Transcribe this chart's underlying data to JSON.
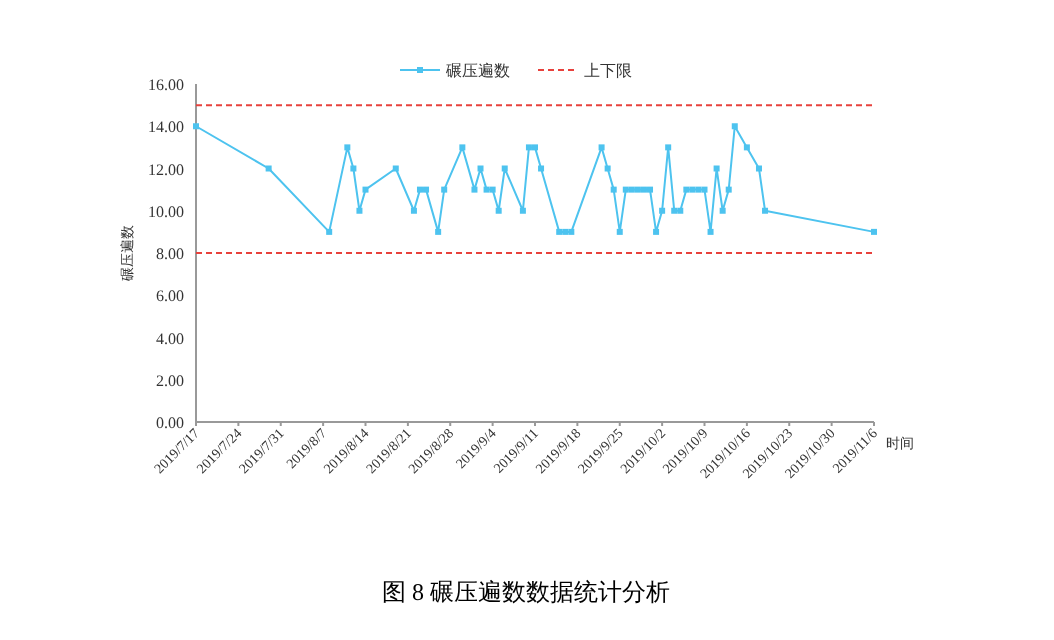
{
  "chart_data": {
    "type": "line",
    "ylabel": "碾压遍数",
    "xlabel": "时间",
    "x": [
      "2019-07-17",
      "2019-07-29",
      "2019-08-08",
      "2019-08-11",
      "2019-08-12",
      "2019-08-13",
      "2019-08-14",
      "2019-08-19",
      "2019-08-22",
      "2019-08-23",
      "2019-08-24",
      "2019-08-26",
      "2019-08-27",
      "2019-08-30",
      "2019-09-01",
      "2019-09-02",
      "2019-09-03",
      "2019-09-04",
      "2019-09-05",
      "2019-09-06",
      "2019-09-09",
      "2019-09-10",
      "2019-09-11",
      "2019-09-12",
      "2019-09-15",
      "2019-09-16",
      "2019-09-17",
      "2019-09-22",
      "2019-09-23",
      "2019-09-24",
      "2019-09-25",
      "2019-09-26",
      "2019-09-27",
      "2019-09-28",
      "2019-09-29",
      "2019-09-30",
      "2019-10-01",
      "2019-10-02",
      "2019-10-03",
      "2019-10-04",
      "2019-10-05",
      "2019-10-06",
      "2019-10-07",
      "2019-10-08",
      "2019-10-09",
      "2019-10-10",
      "2019-10-11",
      "2019-10-12",
      "2019-10-13",
      "2019-10-14",
      "2019-10-16",
      "2019-10-18",
      "2019-10-19",
      "2019-11-06"
    ],
    "series": [
      {
        "name": "碾压遍数",
        "color": "#4dc3ef",
        "values": [
          14,
          12,
          9,
          13,
          12,
          10,
          11,
          12,
          10,
          11,
          11,
          9,
          11,
          13,
          11,
          12,
          11,
          11,
          10,
          12,
          10,
          13,
          13,
          12,
          9,
          9,
          9,
          13,
          12,
          11,
          9,
          11,
          11,
          11,
          11,
          11,
          9,
          10,
          13,
          10,
          10,
          11,
          11,
          11,
          11,
          9,
          12,
          10,
          11,
          14,
          13,
          12,
          10,
          9
        ]
      }
    ],
    "ref_lines": [
      {
        "axis": "y",
        "value": 15,
        "label": "上下限",
        "color": "#e8413c",
        "line_style": "dashed"
      },
      {
        "axis": "y",
        "value": 8,
        "color": "#e8413c",
        "line_style": "dashed"
      }
    ],
    "xlim": [
      "2019-07-17",
      "2019-11-06"
    ],
    "xticks": [
      {
        "value": "2019-07-17",
        "label": "2019/7/17"
      },
      {
        "value": "2019-07-24",
        "label": "2019/7/24"
      },
      {
        "value": "2019-07-31",
        "label": "2019/7/31"
      },
      {
        "value": "2019-08-07",
        "label": "2019/8/7"
      },
      {
        "value": "2019-08-14",
        "label": "2019/8/14"
      },
      {
        "value": "2019-08-21",
        "label": "2019/8/21"
      },
      {
        "value": "2019-08-28",
        "label": "2019/8/28"
      },
      {
        "value": "2019-09-04",
        "label": "2019/9/4"
      },
      {
        "value": "2019-09-11",
        "label": "2019/9/11"
      },
      {
        "value": "2019-09-18",
        "label": "2019/9/18"
      },
      {
        "value": "2019-09-25",
        "label": "2019/9/25"
      },
      {
        "value": "2019-10-02",
        "label": "2019/10/2"
      },
      {
        "value": "2019-10-09",
        "label": "2019/10/9"
      },
      {
        "value": "2019-10-16",
        "label": "2019/10/16"
      },
      {
        "value": "2019-10-23",
        "label": "2019/10/23"
      },
      {
        "value": "2019-10-30",
        "label": "2019/10/30"
      },
      {
        "value": "2019-11-06",
        "label": "2019/11/6"
      }
    ],
    "ylim": [
      0,
      16
    ],
    "yticks": [
      {
        "value": 0,
        "label": "0.00"
      },
      {
        "value": 2,
        "label": "2.00"
      },
      {
        "value": 4,
        "label": "4.00"
      },
      {
        "value": 6,
        "label": "6.00"
      },
      {
        "value": 8,
        "label": "8.00"
      },
      {
        "value": 10,
        "label": "10.00"
      },
      {
        "value": 12,
        "label": "12.00"
      },
      {
        "value": 14,
        "label": "14.00"
      },
      {
        "value": 16,
        "label": "16.00"
      }
    ],
    "grid": false,
    "legend": "top",
    "marker": "square",
    "line_style": "solid",
    "annotations": [
      "图 8 碾压遍数数据统计分析"
    ]
  }
}
